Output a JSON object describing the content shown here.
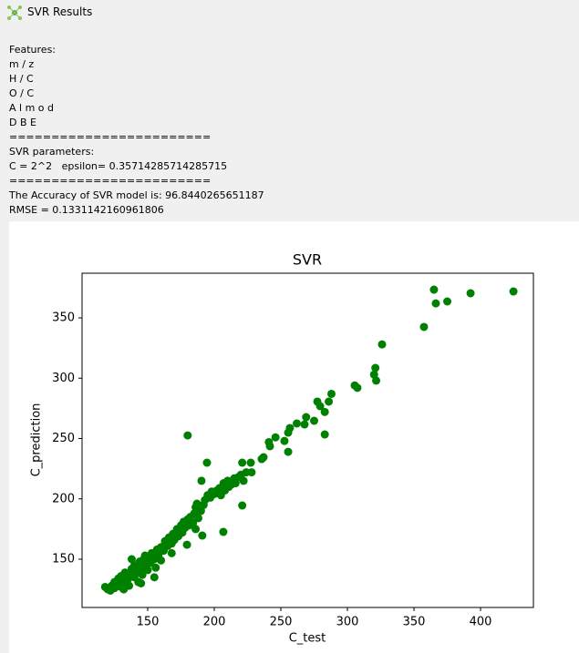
{
  "window": {
    "title": "SVR Results"
  },
  "output": {
    "lines": [
      "Features:",
      "m / z",
      "H / C",
      "O / C",
      "A l m o d",
      "D B E",
      "========================",
      "SVR parameters:",
      "C = 2^2   epsilon= 0.35714285714285715",
      "========================",
      "The Accuracy of SVR model is: 96.8440265651187",
      "RMSE = 0.1331142160961806"
    ]
  },
  "chart_data": {
    "type": "scatter",
    "title": "SVR",
    "x_label": "C_test",
    "y_label": "C_prediction",
    "color": "#008000",
    "xlim": [
      100.7,
      439.7
    ],
    "ylim": [
      110,
      387
    ],
    "xticks": [
      150,
      200,
      250,
      300,
      350,
      400
    ],
    "yticks": [
      150,
      200,
      250,
      300,
      350
    ],
    "x": [
      365,
      366.4,
      375,
      392.5,
      424.7,
      357.5,
      326,
      321,
      320,
      321.6,
      305.5,
      307.5,
      288,
      286,
      277.4,
      279.5,
      283,
      275,
      269,
      267.8,
      262,
      256.8,
      255.5,
      283,
      246,
      241,
      241.8,
      252.7,
      255.5,
      237,
      235.6,
      227.4,
      221,
      180,
      194.5,
      206.8,
      190.4,
      206.8,
      191,
      179.5,
      221,
      118,
      120,
      122,
      123,
      125,
      125,
      127,
      128,
      130,
      130,
      132,
      133,
      135,
      136,
      137,
      138,
      140,
      140,
      142,
      143,
      144,
      145,
      146,
      147,
      148,
      150,
      150,
      152,
      153,
      155,
      156,
      157,
      158,
      160,
      160,
      162,
      163,
      165,
      166,
      168,
      169,
      170,
      172,
      173,
      175,
      176,
      177,
      178,
      180,
      181,
      182,
      184,
      185,
      186,
      187,
      188,
      190,
      192,
      193,
      195,
      197,
      198,
      200,
      202,
      204,
      205,
      207,
      208,
      210,
      211,
      213,
      215,
      216,
      218,
      220,
      222,
      224,
      228,
      186,
      168,
      155,
      148,
      138,
      132,
      145
    ],
    "y": [
      373.4,
      362,
      363.6,
      370.4,
      371.9,
      342.5,
      328,
      308.5,
      303,
      298,
      294,
      292,
      287,
      280.6,
      280.6,
      276.8,
      272,
      264.7,
      267.7,
      261.7,
      262.5,
      258.7,
      254.9,
      253.4,
      251,
      247,
      243.6,
      248,
      239,
      234.5,
      233,
      230,
      230,
      252.6,
      230,
      207.4,
      215,
      172.6,
      169.6,
      162,
      194.5,
      127,
      125,
      124,
      128,
      126,
      131,
      129,
      134,
      127,
      136,
      131,
      139,
      133,
      128,
      137,
      142,
      135,
      145,
      139,
      131,
      148,
      142,
      137,
      150,
      145,
      141,
      152,
      147,
      155,
      150,
      143,
      158,
      153,
      149,
      160,
      157,
      165,
      161,
      168,
      163,
      171,
      166,
      175,
      169,
      178,
      172,
      181,
      176,
      183,
      178,
      185,
      180,
      188,
      193,
      196,
      184,
      190,
      195,
      199,
      203,
      201,
      206,
      204,
      207,
      209,
      203,
      213,
      207,
      215,
      210,
      212,
      217,
      213,
      218,
      220,
      215,
      222,
      222,
      175,
      155,
      135,
      153,
      150,
      125,
      130
    ]
  }
}
